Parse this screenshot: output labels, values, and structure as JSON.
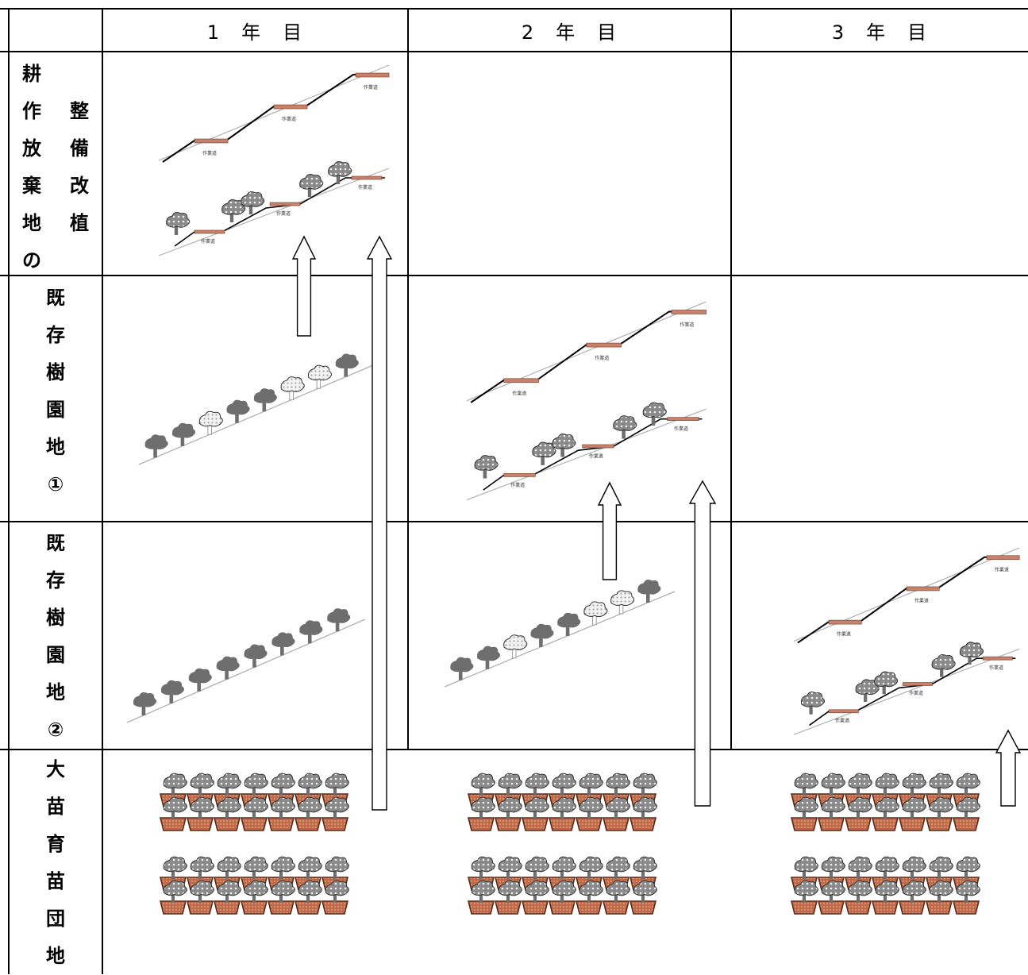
{
  "table": {
    "columns": [
      "1　年　目",
      "2　年　目",
      "3　年　目"
    ],
    "rows": [
      {
        "id": "abandoned",
        "label_left": "耕作放棄地の",
        "label_right": "整備改植"
      },
      {
        "id": "orchard1",
        "label": "既存樹園地①"
      },
      {
        "id": "orchard2",
        "label": "既存樹園地②"
      },
      {
        "id": "nursery",
        "label": "大苗育苗団地"
      }
    ]
  },
  "diagram": {
    "work_road_label": "作業道",
    "colors": {
      "road": "#c8826a",
      "slope": "#b0b0b0",
      "terrace": "#000000",
      "tree_dark": "#6e6e6e",
      "tree_light": "#e6e6e6",
      "tree_pattern": "#8a8a8a",
      "pot": "#c06a4a",
      "pot_dark": "#5a2a1a"
    },
    "icons": [
      "terrace-icon",
      "tree-icon",
      "pot-icon",
      "upward-arrow-icon"
    ]
  }
}
